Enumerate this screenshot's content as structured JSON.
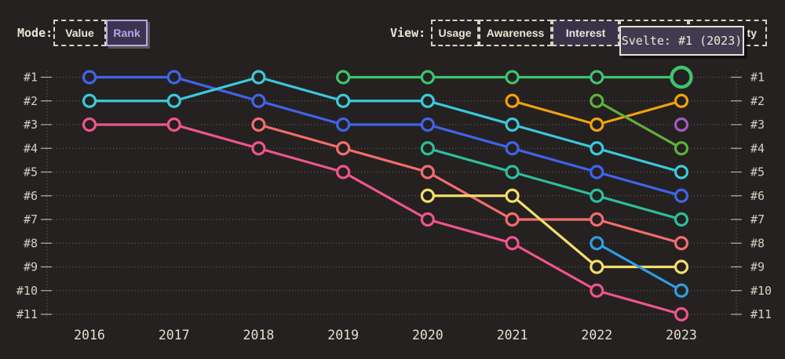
{
  "app": {
    "background_color": "#242120",
    "text_color": "#ece5d6",
    "accent_purple": "#b7a5ee"
  },
  "controls": {
    "mode": {
      "label": "Mode:",
      "options": [
        {
          "label": "Value",
          "selected": false
        },
        {
          "label": "Rank",
          "selected": true
        }
      ]
    },
    "view": {
      "label": "View:",
      "options": [
        {
          "label": "Usage",
          "selected": false
        },
        {
          "label": "Awareness",
          "selected": false
        },
        {
          "label": "Interest",
          "selected": true
        },
        {
          "label": "",
          "selected": false,
          "hidden_behind_tooltip": true
        },
        {
          "label": "ty",
          "selected": false,
          "partially_hidden_behind_tooltip": true
        }
      ]
    }
  },
  "tooltip": {
    "text": "Svelte: #1 (2023)",
    "background": "#413b50",
    "border_color": "#e8e1d3"
  },
  "chart_data": {
    "type": "line",
    "subtype": "bump-rank-chart",
    "x": [
      2016,
      2017,
      2018,
      2019,
      2020,
      2021,
      2022,
      2023
    ],
    "x_tick_labels": [
      "2016",
      "2017",
      "2018",
      "2019",
      "2020",
      "2021",
      "2022",
      "2023"
    ],
    "y_tick_labels": [
      "#1",
      "#2",
      "#3",
      "#4",
      "#5",
      "#6",
      "#7",
      "#8",
      "#9",
      "#10",
      "#11"
    ],
    "ylim": [
      1,
      11
    ],
    "y_inverted": true,
    "grid": "dotted-horizontal",
    "axis_color": "#b9b3a7",
    "series": [
      {
        "name": "royal-blue-series",
        "color": "#4263eb",
        "ranks": [
          1,
          1,
          2,
          3,
          3,
          4,
          5,
          6
        ]
      },
      {
        "name": "cyan-series",
        "color": "#3bc9db",
        "ranks": [
          2,
          2,
          1,
          2,
          2,
          3,
          4,
          5
        ]
      },
      {
        "name": "pink-series",
        "color": "#f0548c",
        "ranks": [
          3,
          3,
          4,
          5,
          7,
          8,
          10,
          11
        ]
      },
      {
        "name": "salmon-series",
        "color": "#f26d6d",
        "ranks": [
          null,
          null,
          3,
          4,
          5,
          7,
          7,
          8
        ]
      },
      {
        "name": "teal-series",
        "color": "#2cbf9d",
        "ranks": [
          null,
          null,
          null,
          null,
          4,
          5,
          6,
          7
        ]
      },
      {
        "name": "yellow-series",
        "color": "#f3dd6d",
        "ranks": [
          null,
          null,
          null,
          null,
          6,
          6,
          9,
          9
        ]
      },
      {
        "name": "orange-series",
        "color": "#f2a20d",
        "ranks": [
          null,
          null,
          null,
          null,
          null,
          2,
          3,
          2
        ]
      },
      {
        "name": "olive-green-series",
        "color": "#5fb03a",
        "ranks": [
          null,
          null,
          null,
          null,
          null,
          null,
          2,
          4
        ]
      },
      {
        "name": "light-blue-series",
        "color": "#2f9de2",
        "ranks": [
          null,
          null,
          null,
          null,
          null,
          null,
          8,
          10
        ]
      },
      {
        "name": "purple-series",
        "color": "#a55ac2",
        "ranks": [
          null,
          null,
          null,
          null,
          null,
          null,
          null,
          3
        ]
      },
      {
        "name": "Svelte",
        "color": "#3ec46f",
        "ranks": [
          null,
          null,
          null,
          1,
          1,
          1,
          1,
          1
        ]
      }
    ],
    "highlight": {
      "series": "Svelte",
      "year": 2023,
      "rank": 1
    }
  }
}
